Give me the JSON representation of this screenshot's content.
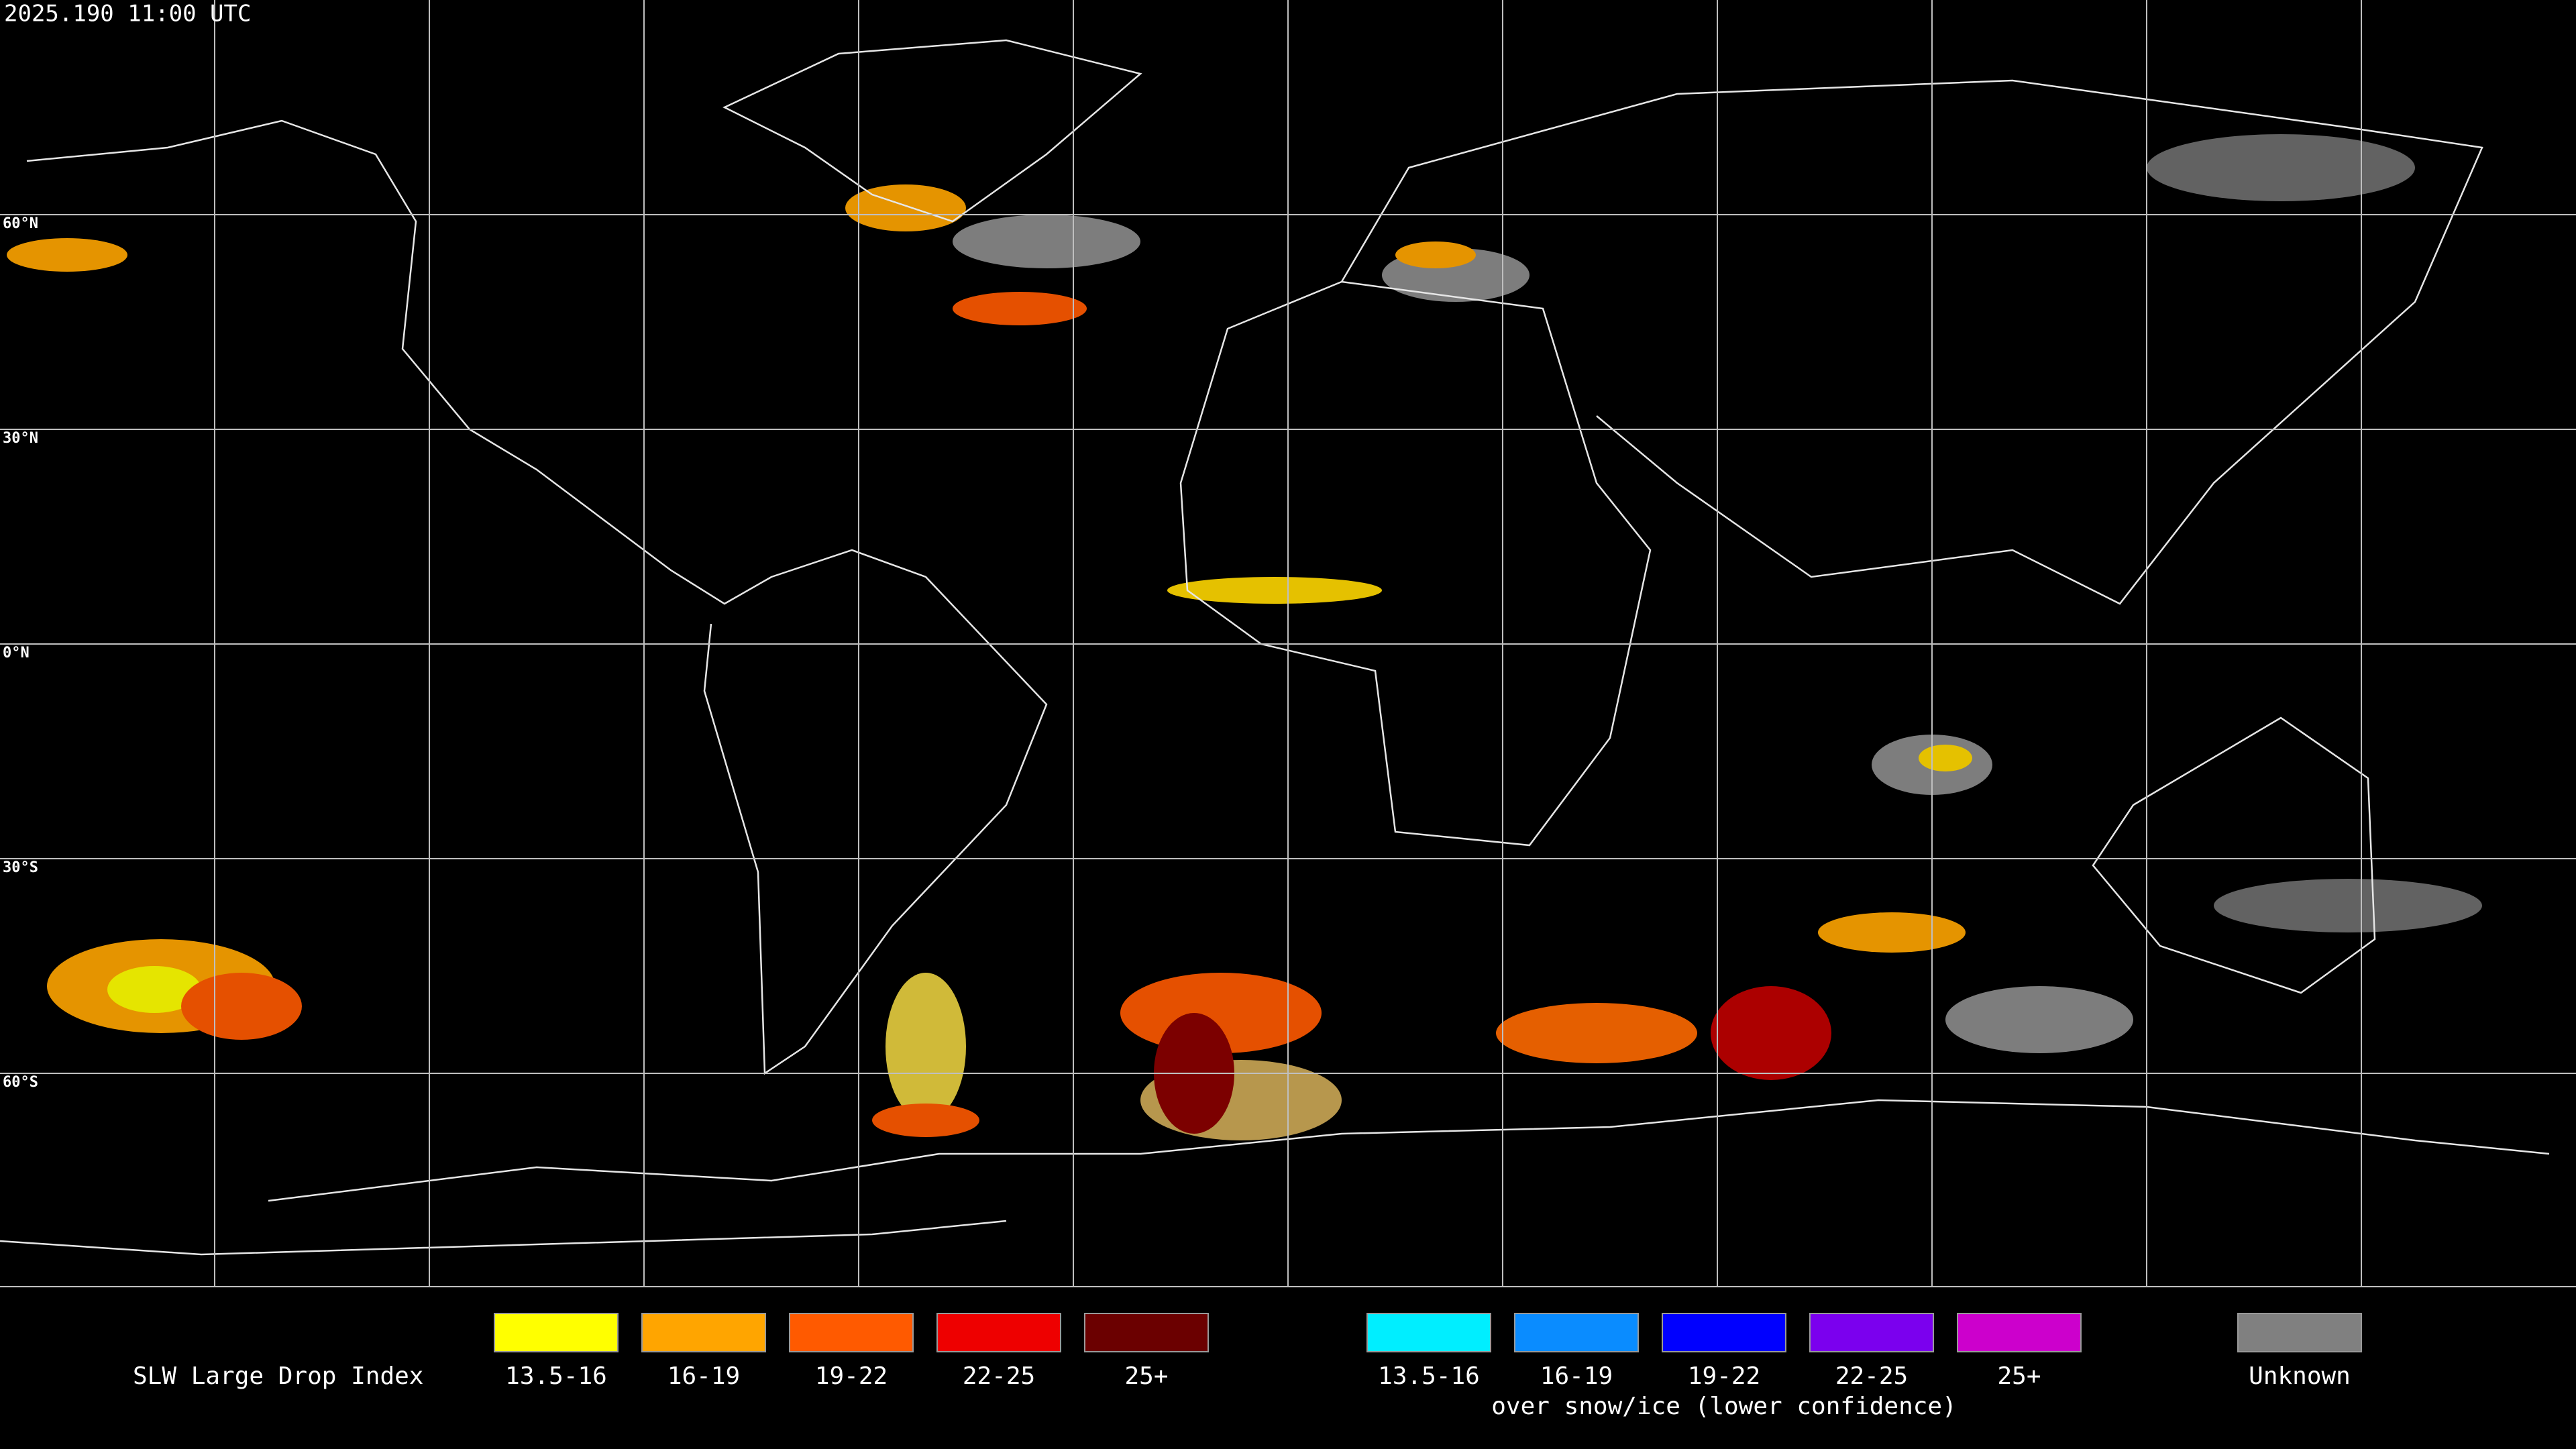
{
  "header": {
    "timestamp": "2025.190 11:00 UTC"
  },
  "map": {
    "latitude_labels": [
      "60°N",
      "30°N",
      "0°N",
      "30°S",
      "60°S"
    ]
  },
  "legend": {
    "title": "SLW Large Drop Index",
    "groups": [
      {
        "items": [
          {
            "label": "13.5-16",
            "color": "#ffff00"
          },
          {
            "label": "16-19",
            "color": "#ffa500"
          },
          {
            "label": "19-22",
            "color": "#ff5a00"
          },
          {
            "label": "22-25",
            "color": "#ee0000"
          },
          {
            "label": "25+",
            "color": "#6b0000"
          }
        ]
      },
      {
        "items": [
          {
            "label": "13.5-16",
            "color": "#00eeff"
          },
          {
            "label": "16-19",
            "color": "#0a8cff"
          },
          {
            "label": "19-22",
            "color": "#0000ff"
          },
          {
            "label": "22-25",
            "color": "#7b00ee"
          },
          {
            "label": "25+",
            "color": "#cc00cc"
          }
        ],
        "note": "over snow/ice (lower confidence)"
      },
      {
        "items": [
          {
            "label": "Unknown",
            "color": "#808080"
          }
        ]
      }
    ]
  }
}
